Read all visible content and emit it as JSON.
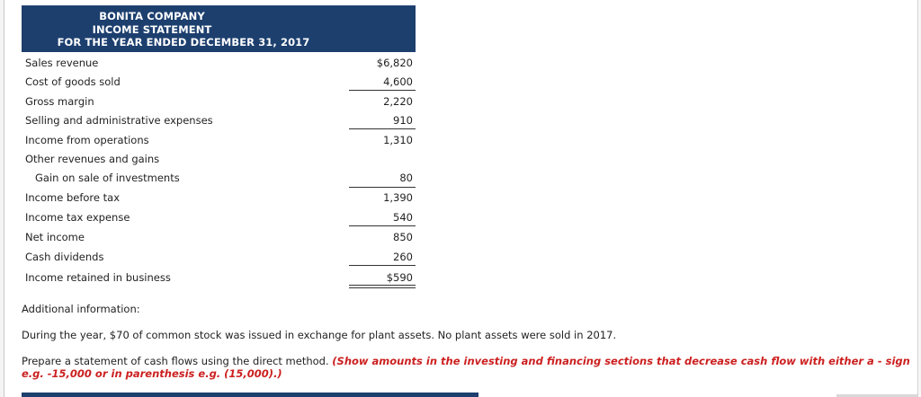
{
  "header": {
    "company": "BONITA COMPANY",
    "statement": "INCOME STATEMENT",
    "period": "FOR THE YEAR ENDED DECEMBER 31, 2017"
  },
  "rows": [
    {
      "label": "Sales revenue",
      "value": "$6,820"
    },
    {
      "label": "Cost of goods sold",
      "value": "4,600"
    },
    {
      "label": "Gross margin",
      "value": "2,220"
    },
    {
      "label": "Selling and administrative expenses",
      "value": "910"
    },
    {
      "label": "Income from operations",
      "value": "1,310"
    },
    {
      "label": "Other revenues and gains",
      "value": ""
    },
    {
      "label": "Gain on sale of investments",
      "value": "80"
    },
    {
      "label": "Income before tax",
      "value": "1,390"
    },
    {
      "label": "Income tax expense",
      "value": "540"
    },
    {
      "label": "Net income",
      "value": "850"
    },
    {
      "label": "Cash dividends",
      "value": "260"
    },
    {
      "label": "Income retained in business",
      "value": "$590"
    }
  ],
  "additional": {
    "heading": "Additional information:",
    "text": "During the year, $70 of common stock was issued in exchange for plant assets. No plant assets were sold in 2017."
  },
  "instructions": {
    "prefix": "Prepare a statement of cash flows using the direct method. ",
    "note_line1": "(Show amounts in the investing and financing sections that decrease cash flow with either a - sign",
    "note_line2": "e.g. -15,000 or in parenthesis e.g. (15,000).)"
  }
}
